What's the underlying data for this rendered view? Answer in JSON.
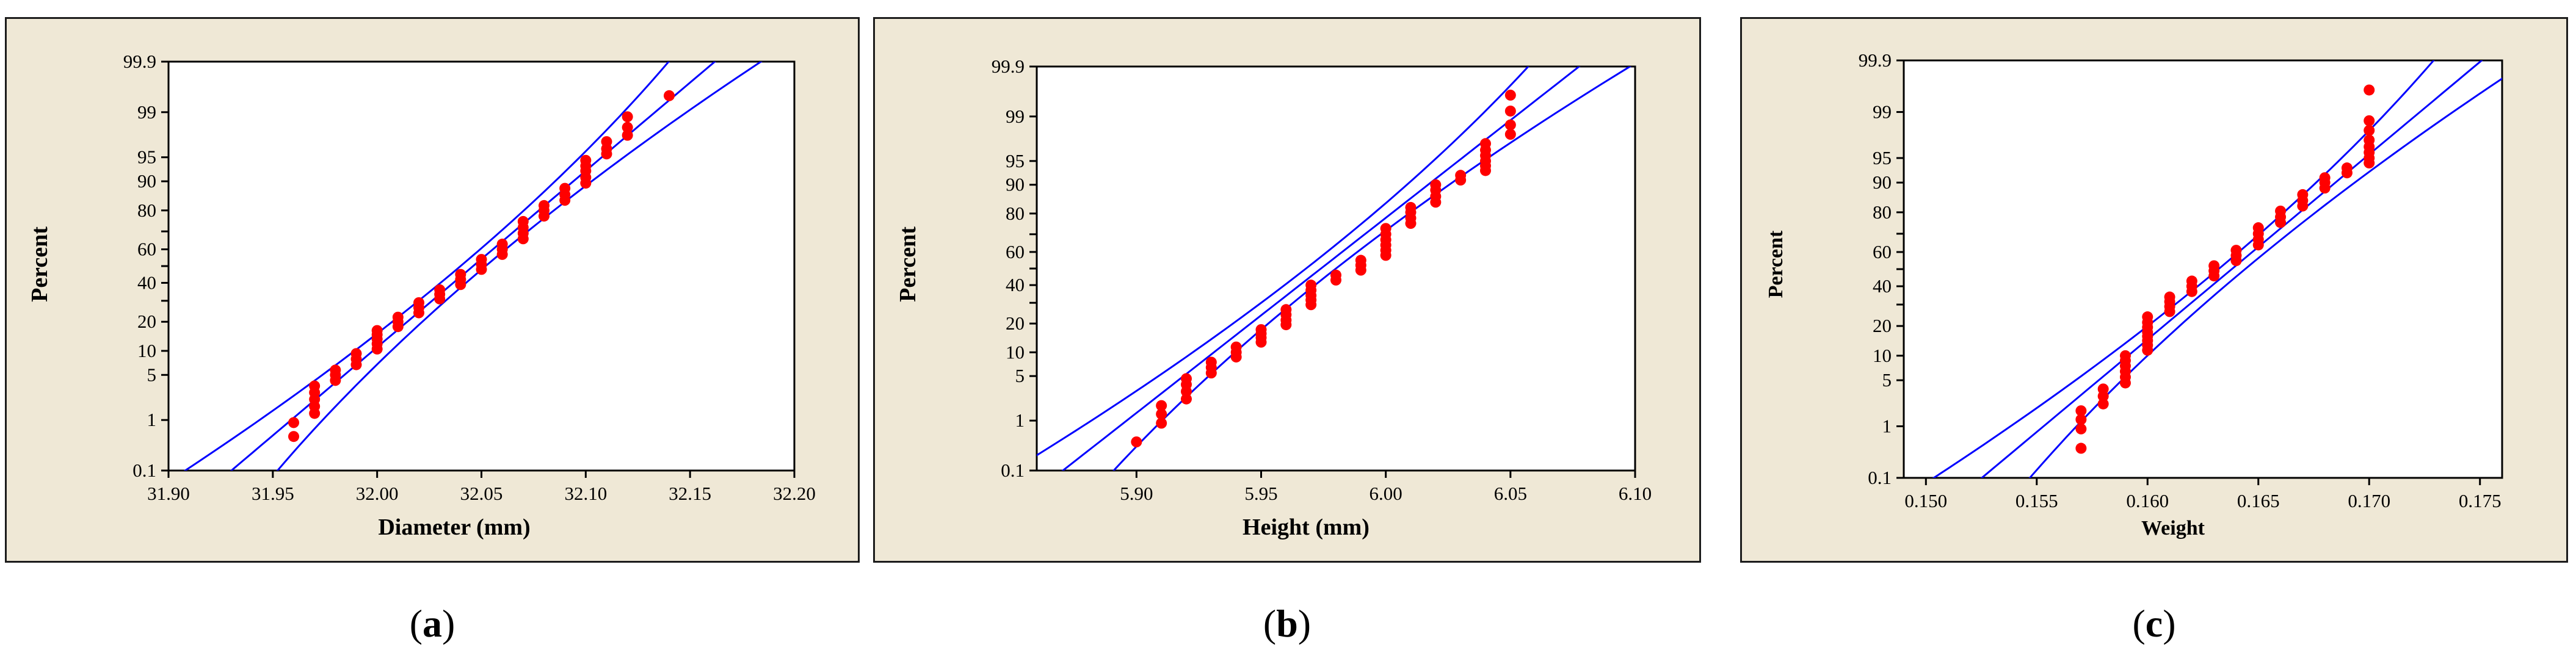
{
  "colors": {
    "points": "#ff0000",
    "fit_lines": "#0000ff",
    "panel_bg": "#efe8d6",
    "plot_bg": "#ffffff"
  },
  "chart_data": [
    {
      "type": "scatter",
      "plot_kind": "normal-probability-plot",
      "caption": {
        "open": "(",
        "letter": "a",
        "close": ")"
      },
      "xlabel": "Diameter (mm)",
      "ylabel": "Percent",
      "xlim": [
        31.9,
        32.2
      ],
      "x_ticks": [
        "31.90",
        "31.95",
        "32.00",
        "32.05",
        "32.10",
        "32.15",
        "32.20"
      ],
      "y_ticks": [
        "0.1",
        "1",
        "5",
        "10",
        "20",
        "30",
        "40",
        "50",
        "60",
        "70",
        "80",
        "90",
        "95",
        "99",
        "99.9"
      ],
      "y_tick_labels_shown": [
        "0.1",
        "1",
        "5",
        "10",
        "20",
        "40",
        "60",
        "80",
        "90",
        "95",
        "99",
        "99.9"
      ],
      "fit": {
        "mean": 32.046,
        "sd": 0.0375,
        "ci_offset": 0.006,
        "ci_grow": 0.25
      },
      "points": [
        [
          31.96,
          0.5
        ],
        [
          31.96,
          0.9
        ],
        [
          31.97,
          1.3
        ],
        [
          31.97,
          1.7
        ],
        [
          31.97,
          2.2
        ],
        [
          31.97,
          2.8
        ],
        [
          31.97,
          3.5
        ],
        [
          31.98,
          4.2
        ],
        [
          31.98,
          5.0
        ],
        [
          31.98,
          5.8
        ],
        [
          31.99,
          6.8
        ],
        [
          31.99,
          8.0
        ],
        [
          31.99,
          9.3
        ],
        [
          32.0,
          10.5
        ],
        [
          32.0,
          12.0
        ],
        [
          32.0,
          13.5
        ],
        [
          32.0,
          15.0
        ],
        [
          32.0,
          16.5
        ],
        [
          32.01,
          18.0
        ],
        [
          32.01,
          20.0
        ],
        [
          32.01,
          22.0
        ],
        [
          32.02,
          24.0
        ],
        [
          32.02,
          26.5
        ],
        [
          32.02,
          29.0
        ],
        [
          32.03,
          31.0
        ],
        [
          32.03,
          33.5
        ],
        [
          32.03,
          36.0
        ],
        [
          32.04,
          39.0
        ],
        [
          32.04,
          42.0
        ],
        [
          32.04,
          45.0
        ],
        [
          32.05,
          48.0
        ],
        [
          32.05,
          51.0
        ],
        [
          32.05,
          54.0
        ],
        [
          32.06,
          57.0
        ],
        [
          32.06,
          60.0
        ],
        [
          32.06,
          63.0
        ],
        [
          32.07,
          66.0
        ],
        [
          32.07,
          69.0
        ],
        [
          32.07,
          72.0
        ],
        [
          32.07,
          75.0
        ],
        [
          32.08,
          77.5
        ],
        [
          32.08,
          80.0
        ],
        [
          32.08,
          82.0
        ],
        [
          32.09,
          84.0
        ],
        [
          32.09,
          86.0
        ],
        [
          32.09,
          88.0
        ],
        [
          32.1,
          89.5
        ],
        [
          32.1,
          91.0
        ],
        [
          32.1,
          92.5
        ],
        [
          32.1,
          93.5
        ],
        [
          32.1,
          94.5
        ],
        [
          32.11,
          95.5
        ],
        [
          32.11,
          96.2
        ],
        [
          32.11,
          97.0
        ],
        [
          32.12,
          97.6
        ],
        [
          32.12,
          98.2
        ],
        [
          32.12,
          98.8
        ],
        [
          32.14,
          99.5
        ]
      ]
    },
    {
      "type": "scatter",
      "plot_kind": "normal-probability-plot",
      "caption": {
        "open": "(",
        "letter": "b",
        "close": ")"
      },
      "xlabel": "Height (mm)",
      "ylabel": "Percent",
      "xlim": [
        5.86,
        6.1
      ],
      "x_ticks": [
        "5.90",
        "5.95",
        "6.00",
        "6.05",
        "6.10"
      ],
      "y_ticks": [
        "0.1",
        "1",
        "5",
        "10",
        "20",
        "30",
        "40",
        "50",
        "60",
        "70",
        "80",
        "90",
        "95",
        "99",
        "99.9"
      ],
      "y_tick_labels_shown": [
        "0.1",
        "1",
        "5",
        "10",
        "20",
        "40",
        "60",
        "80",
        "90",
        "95",
        "99",
        "99.9"
      ],
      "fit": {
        "mean": 5.974,
        "sd": 0.0335,
        "ci_offset": 0.006,
        "ci_grow": 0.25
      },
      "points": [
        [
          5.9,
          0.4
        ],
        [
          5.91,
          0.9
        ],
        [
          5.91,
          1.3
        ],
        [
          5.91,
          1.8
        ],
        [
          5.92,
          2.3
        ],
        [
          5.92,
          3.0
        ],
        [
          5.92,
          3.8
        ],
        [
          5.92,
          4.6
        ],
        [
          5.93,
          5.5
        ],
        [
          5.93,
          6.5
        ],
        [
          5.93,
          7.6
        ],
        [
          5.94,
          8.8
        ],
        [
          5.94,
          10.0
        ],
        [
          5.94,
          11.5
        ],
        [
          5.95,
          13.0
        ],
        [
          5.95,
          14.5
        ],
        [
          5.95,
          16.0
        ],
        [
          5.95,
          17.5
        ],
        [
          5.96,
          19.5
        ],
        [
          5.96,
          21.5
        ],
        [
          5.96,
          24.0
        ],
        [
          5.96,
          26.5
        ],
        [
          5.97,
          29.0
        ],
        [
          5.97,
          31.5
        ],
        [
          5.97,
          34.0
        ],
        [
          5.97,
          37.0
        ],
        [
          5.97,
          40.0
        ],
        [
          5.98,
          43.0
        ],
        [
          5.98,
          46.0
        ],
        [
          5.99,
          49.0
        ],
        [
          5.99,
          52.0
        ],
        [
          5.99,
          55.0
        ],
        [
          6.0,
          58.0
        ],
        [
          6.0,
          61.0
        ],
        [
          6.0,
          64.0
        ],
        [
          6.0,
          67.0
        ],
        [
          6.0,
          70.0
        ],
        [
          6.0,
          73.0
        ],
        [
          6.01,
          75.5
        ],
        [
          6.01,
          78.0
        ],
        [
          6.01,
          80.5
        ],
        [
          6.01,
          82.5
        ],
        [
          6.02,
          84.5
        ],
        [
          6.02,
          86.5
        ],
        [
          6.02,
          88.5
        ],
        [
          6.02,
          90.0
        ],
        [
          6.03,
          91.2
        ],
        [
          6.03,
          92.3
        ],
        [
          6.04,
          93.3
        ],
        [
          6.04,
          94.2
        ],
        [
          6.04,
          95.0
        ],
        [
          6.04,
          95.8
        ],
        [
          6.04,
          96.5
        ],
        [
          6.04,
          97.2
        ],
        [
          6.05,
          98.0
        ],
        [
          6.05,
          98.6
        ],
        [
          6.05,
          99.2
        ],
        [
          6.05,
          99.6
        ]
      ]
    },
    {
      "type": "scatter",
      "plot_kind": "normal-probability-plot",
      "caption": {
        "open": "(",
        "letter": "c",
        "close": ")"
      },
      "xlabel": "Weight",
      "ylabel": "Percent",
      "xlim": [
        0.149,
        0.176
      ],
      "x_ticks": [
        "0.150",
        "0.155",
        "0.160",
        "0.165",
        "0.170",
        "0.175"
      ],
      "y_ticks": [
        "0.1",
        "1",
        "5",
        "10",
        "20",
        "30",
        "40",
        "50",
        "60",
        "70",
        "80",
        "90",
        "95",
        "99",
        "99.9"
      ],
      "y_tick_labels_shown": [
        "0.1",
        "1",
        "5",
        "10",
        "20",
        "40",
        "60",
        "80",
        "90",
        "95",
        "99",
        "99.9"
      ],
      "fit": {
        "mean": 0.1638,
        "sd": 0.00365,
        "ci_offset": 0.0006,
        "ci_grow": 0.25
      },
      "points": [
        [
          0.157,
          0.4
        ],
        [
          0.157,
          0.9
        ],
        [
          0.157,
          1.3
        ],
        [
          0.157,
          1.8
        ],
        [
          0.158,
          2.3
        ],
        [
          0.158,
          3.0
        ],
        [
          0.158,
          3.8
        ],
        [
          0.159,
          4.6
        ],
        [
          0.159,
          5.5
        ],
        [
          0.159,
          6.5
        ],
        [
          0.159,
          7.6
        ],
        [
          0.159,
          8.8
        ],
        [
          0.159,
          10.0
        ],
        [
          0.16,
          11.5
        ],
        [
          0.16,
          13.0
        ],
        [
          0.16,
          14.5
        ],
        [
          0.16,
          16.0
        ],
        [
          0.16,
          17.5
        ],
        [
          0.16,
          19.5
        ],
        [
          0.16,
          21.5
        ],
        [
          0.16,
          24.0
        ],
        [
          0.161,
          26.5
        ],
        [
          0.161,
          29.0
        ],
        [
          0.161,
          31.5
        ],
        [
          0.161,
          34.0
        ],
        [
          0.162,
          37.0
        ],
        [
          0.162,
          40.0
        ],
        [
          0.162,
          43.0
        ],
        [
          0.163,
          46.0
        ],
        [
          0.163,
          49.0
        ],
        [
          0.163,
          52.0
        ],
        [
          0.164,
          55.0
        ],
        [
          0.164,
          58.0
        ],
        [
          0.164,
          61.0
        ],
        [
          0.165,
          64.0
        ],
        [
          0.165,
          67.0
        ],
        [
          0.165,
          70.0
        ],
        [
          0.165,
          73.0
        ],
        [
          0.166,
          75.5
        ],
        [
          0.166,
          78.0
        ],
        [
          0.166,
          80.5
        ],
        [
          0.167,
          82.5
        ],
        [
          0.167,
          84.5
        ],
        [
          0.167,
          86.5
        ],
        [
          0.168,
          88.5
        ],
        [
          0.168,
          90.0
        ],
        [
          0.168,
          91.2
        ],
        [
          0.169,
          92.3
        ],
        [
          0.169,
          93.3
        ],
        [
          0.17,
          94.2
        ],
        [
          0.17,
          95.0
        ],
        [
          0.17,
          95.8
        ],
        [
          0.17,
          96.5
        ],
        [
          0.17,
          97.2
        ],
        [
          0.17,
          98.0
        ],
        [
          0.17,
          98.6
        ],
        [
          0.17,
          99.6
        ]
      ]
    }
  ]
}
